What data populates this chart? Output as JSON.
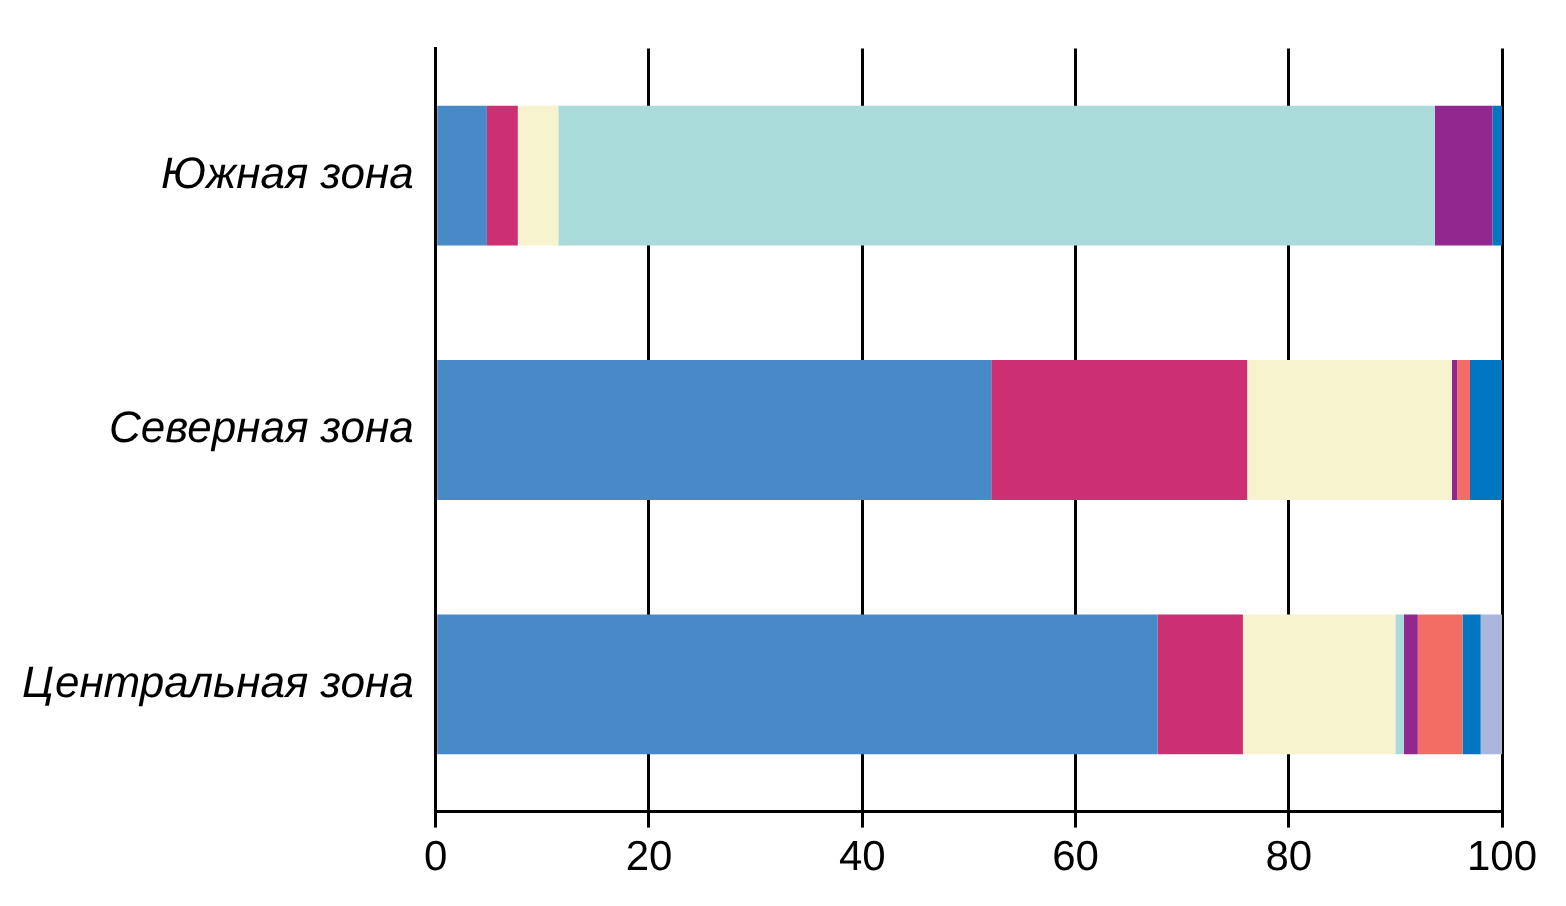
{
  "chart_data": {
    "type": "bar",
    "orientation": "horizontal",
    "stacked": true,
    "categories": [
      "Южная зона",
      "Северная зона",
      "Центральная зона"
    ],
    "series": [
      {
        "color": "#4889c8",
        "values": [
          4.8,
          52.1,
          67.7
        ]
      },
      {
        "color": "#cc3073",
        "values": [
          2.9,
          24.0,
          8.0
        ]
      },
      {
        "color": "#f8f3cf",
        "values": [
          3.8,
          19.2,
          14.3
        ]
      },
      {
        "color": "#a8dbd9",
        "values": [
          82.2,
          0,
          0.8
        ]
      },
      {
        "color": "#92278f",
        "values": [
          5.4,
          0.5,
          1.3
        ]
      },
      {
        "color": "#f26d64",
        "values": [
          0,
          1.2,
          4.2
        ]
      },
      {
        "color": "#0077c0",
        "values": [
          0.9,
          3.0,
          1.7
        ]
      },
      {
        "color": "#aab6da",
        "values": [
          0,
          0,
          2.0
        ]
      }
    ],
    "xlim": [
      0,
      100
    ],
    "xticks": [
      0,
      20,
      40,
      60,
      80,
      100
    ],
    "grid": "x",
    "legend": false
  }
}
